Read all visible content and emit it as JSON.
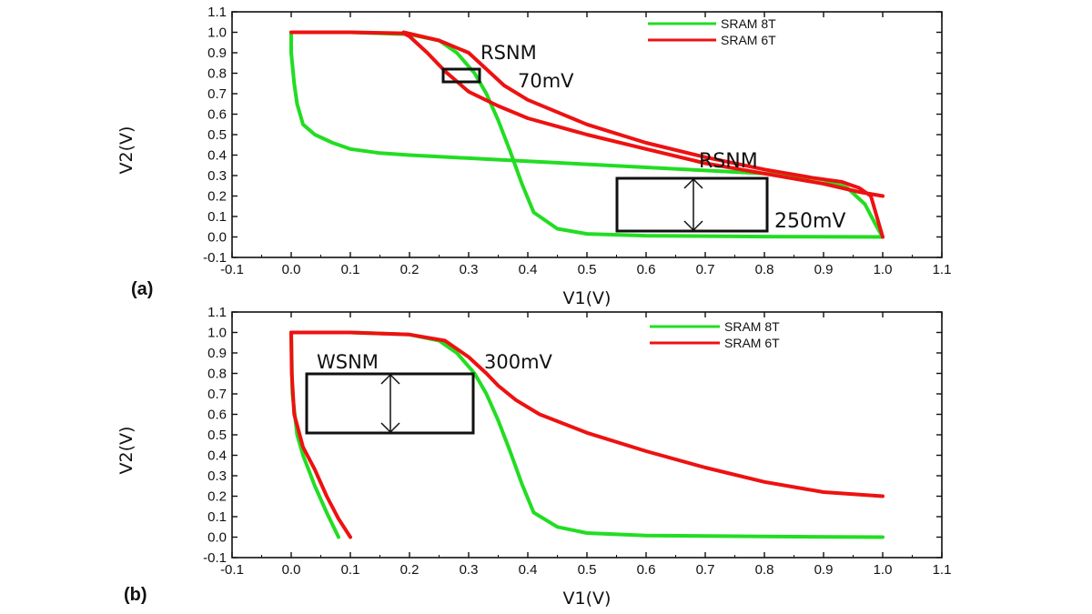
{
  "chart_data": [
    {
      "type": "line",
      "panel": "(a)",
      "xlabel": "V1(V)",
      "ylabel": "V2(V)",
      "xlim": [
        -0.1,
        1.1
      ],
      "ylim": [
        -0.1,
        1.1
      ],
      "xticks": [
        "-0.1",
        "0.0",
        "0.1",
        "0.2",
        "0.3",
        "0.4",
        "0.5",
        "0.6",
        "0.7",
        "0.8",
        "0.9",
        "1.0",
        "1.1"
      ],
      "yticks": [
        "-0.1",
        "0.0",
        "0.1",
        "0.2",
        "0.3",
        "0.4",
        "0.5",
        "0.6",
        "0.7",
        "0.8",
        "0.9",
        "1.0",
        "1.1"
      ],
      "legend_position": "top-right",
      "series": [
        {
          "name": "SRAM 8T",
          "color": "#22dd22",
          "curves": [
            {
              "x": [
                0.0,
                0.1,
                0.2,
                0.25,
                0.28,
                0.31,
                0.33,
                0.35,
                0.37,
                0.39,
                0.41,
                0.45,
                0.5,
                0.6,
                0.8,
                1.0
              ],
              "y": [
                1.0,
                1.0,
                0.99,
                0.96,
                0.9,
                0.8,
                0.7,
                0.57,
                0.42,
                0.26,
                0.12,
                0.04,
                0.015,
                0.006,
                0.002,
                0.0
              ]
            },
            {
              "x": [
                0.0,
                0.0,
                0.005,
                0.01,
                0.02,
                0.04,
                0.07,
                0.1,
                0.15,
                0.2,
                0.3,
                0.4,
                0.5,
                0.6,
                0.7,
                0.8,
                0.85,
                0.9,
                0.94,
                0.97,
                0.99,
                1.0
              ],
              "y": [
                1.0,
                0.9,
                0.75,
                0.65,
                0.55,
                0.5,
                0.46,
                0.43,
                0.41,
                0.4,
                0.385,
                0.37,
                0.355,
                0.34,
                0.325,
                0.31,
                0.3,
                0.28,
                0.24,
                0.16,
                0.05,
                0.0
              ]
            }
          ]
        },
        {
          "name": "SRAM 6T",
          "color": "#ee1111",
          "curves": [
            {
              "x": [
                0.0,
                0.1,
                0.19,
                0.2,
                0.23,
                0.26,
                0.28,
                0.3,
                0.35,
                0.4,
                0.5,
                0.6,
                0.7,
                0.8,
                0.9,
                0.96,
                1.0
              ],
              "y": [
                1.0,
                1.0,
                0.995,
                0.98,
                0.9,
                0.81,
                0.76,
                0.71,
                0.64,
                0.58,
                0.5,
                0.43,
                0.36,
                0.31,
                0.26,
                0.22,
                0.2
              ]
            },
            {
              "x": [
                0.19,
                0.25,
                0.3,
                0.33,
                0.36,
                0.4,
                0.5,
                0.6,
                0.7,
                0.8,
                0.88,
                0.93,
                0.96,
                0.98,
                0.99,
                1.0
              ],
              "y": [
                1.0,
                0.96,
                0.9,
                0.82,
                0.74,
                0.67,
                0.55,
                0.46,
                0.39,
                0.33,
                0.29,
                0.27,
                0.24,
                0.2,
                0.1,
                0.0
              ]
            }
          ]
        }
      ],
      "annotations": [
        {
          "label": "RSNM",
          "value": "70mV"
        },
        {
          "label": "RSNM",
          "value": "250mV"
        }
      ]
    },
    {
      "type": "line",
      "panel": "(b)",
      "xlabel": "V1(V)",
      "ylabel": "V2(V)",
      "xlim": [
        -0.1,
        1.1
      ],
      "ylim": [
        -0.1,
        1.1
      ],
      "xticks": [
        "-0.1",
        "0.0",
        "0.1",
        "0.2",
        "0.3",
        "0.4",
        "0.5",
        "0.6",
        "0.7",
        "0.8",
        "0.9",
        "1.0",
        "1.1"
      ],
      "yticks": [
        "-0.1",
        "0.0",
        "0.1",
        "0.2",
        "0.3",
        "0.4",
        "0.5",
        "0.6",
        "0.7",
        "0.8",
        "0.9",
        "1.0",
        "1.1"
      ],
      "legend_position": "top-right",
      "series": [
        {
          "name": "SRAM 8T",
          "color": "#22dd22",
          "curves": [
            {
              "x": [
                0.0,
                0.1,
                0.2,
                0.25,
                0.28,
                0.31,
                0.33,
                0.35,
                0.37,
                0.39,
                0.41,
                0.45,
                0.5,
                0.6,
                0.8,
                1.0
              ],
              "y": [
                1.0,
                1.0,
                0.99,
                0.96,
                0.9,
                0.8,
                0.7,
                0.57,
                0.42,
                0.26,
                0.12,
                0.05,
                0.02,
                0.008,
                0.003,
                0.0
              ]
            },
            {
              "x": [
                0.0,
                0.002,
                0.01,
                0.02,
                0.04,
                0.06,
                0.08
              ],
              "y": [
                1.0,
                0.7,
                0.5,
                0.4,
                0.25,
                0.12,
                0.0
              ]
            }
          ]
        },
        {
          "name": "SRAM 6T",
          "color": "#ee1111",
          "curves": [
            {
              "x": [
                0.0,
                0.1,
                0.2,
                0.26,
                0.3,
                0.33,
                0.35,
                0.38,
                0.42,
                0.5,
                0.6,
                0.7,
                0.8,
                0.9,
                1.0
              ],
              "y": [
                1.0,
                1.0,
                0.99,
                0.96,
                0.88,
                0.8,
                0.74,
                0.67,
                0.6,
                0.51,
                0.42,
                0.34,
                0.27,
                0.22,
                0.2
              ]
            },
            {
              "x": [
                0.0,
                0.001,
                0.005,
                0.02,
                0.04,
                0.06,
                0.08,
                0.1
              ],
              "y": [
                1.0,
                0.8,
                0.6,
                0.44,
                0.33,
                0.2,
                0.09,
                0.0
              ]
            }
          ]
        }
      ],
      "annotations": [
        {
          "label": "WSNM",
          "value": "300mV"
        }
      ]
    }
  ]
}
